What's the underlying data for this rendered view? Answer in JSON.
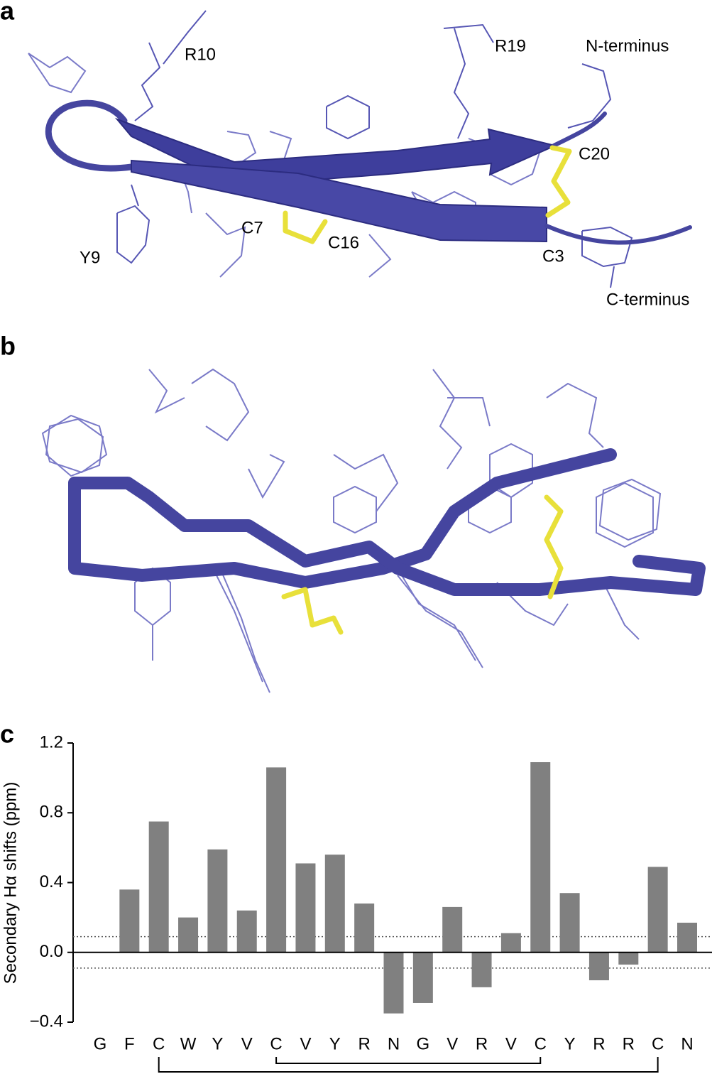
{
  "figure": {
    "panel_labels": [
      "a",
      "b",
      "c"
    ],
    "structure_labels": [
      "R10",
      "R19",
      "N-terminus",
      "C20",
      "C7",
      "C16",
      "C3",
      "Y9",
      "C-terminus"
    ]
  },
  "chart_data": {
    "type": "bar",
    "y_label": "Secondary Hα shifts (ppm)",
    "categories": [
      "G",
      "F",
      "C",
      "W",
      "Y",
      "V",
      "C",
      "V",
      "Y",
      "R",
      "N",
      "G",
      "V",
      "R",
      "V",
      "C",
      "Y",
      "R",
      "R",
      "C",
      "N"
    ],
    "values": [
      null,
      0.36,
      0.75,
      0.2,
      0.59,
      0.24,
      1.06,
      0.51,
      0.56,
      0.28,
      -0.35,
      -0.29,
      0.26,
      -0.2,
      0.11,
      1.09,
      0.34,
      -0.16,
      -0.07,
      0.49,
      0.17
    ],
    "color": "#808080",
    "ylim": [
      -0.4,
      1.2
    ],
    "yticks": [
      {
        "value": -0.4,
        "label": "−0.4"
      },
      {
        "value": 0,
        "label": "0.0"
      },
      0.4,
      0.8,
      1.2
    ],
    "reference_lines": [
      0.09,
      -0.09
    ],
    "connectors": [
      [
        2,
        19
      ],
      [
        6,
        15
      ]
    ]
  }
}
